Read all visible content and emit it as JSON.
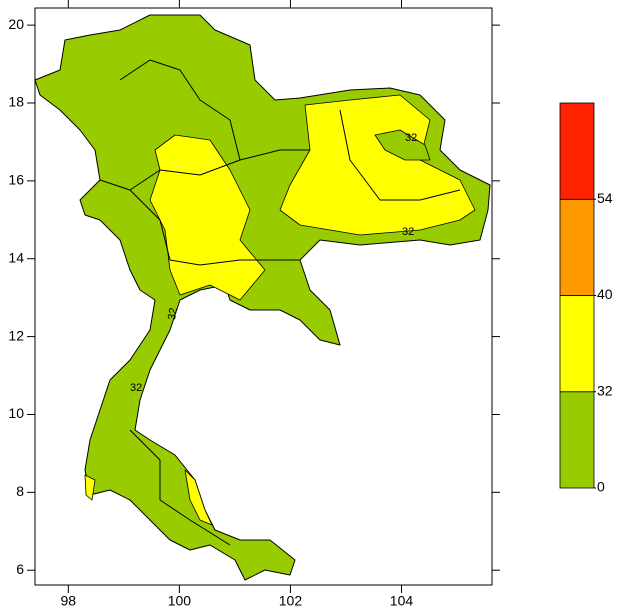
{
  "chart_data": {
    "type": "map",
    "xlim": [
      97.4,
      105.63
    ],
    "ylim": [
      5.62,
      20.44
    ],
    "xticks": [
      98,
      100,
      102,
      104
    ],
    "yticks": [
      6,
      8,
      10,
      12,
      14,
      16,
      18,
      20
    ],
    "contour_label": "32",
    "colorbar": {
      "levels": [
        0,
        32,
        40,
        54
      ],
      "colors": [
        "#99cc00",
        "#ffff00",
        "#ff9900",
        "#ff2200"
      ]
    }
  }
}
